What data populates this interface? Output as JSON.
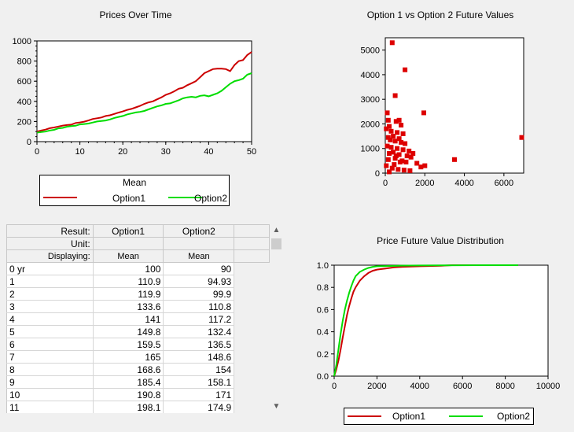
{
  "chart1": {
    "title": "Prices Over Time",
    "legend_title": "Mean",
    "series_labels": [
      "Option1",
      "Option2"
    ]
  },
  "chart2": {
    "title": "Option 1 vs Option 2 Future Values"
  },
  "chart3": {
    "title": "Price Future Value Distribution",
    "series_labels": [
      "Option1",
      "Option2"
    ]
  },
  "table": {
    "header_rows": [
      {
        "label": "Result:",
        "cells": [
          "Option1",
          "Option2"
        ]
      },
      {
        "label": "Unit:",
        "cells": [
          "",
          ""
        ]
      },
      {
        "label": "Displaying:",
        "cells": [
          "Mean",
          "Mean"
        ]
      }
    ],
    "rows": [
      {
        "label": "0 yr",
        "v1": "100",
        "v2": "90"
      },
      {
        "label": "1",
        "v1": "110.9",
        "v2": "94.93"
      },
      {
        "label": "2",
        "v1": "119.9",
        "v2": "99.9"
      },
      {
        "label": "3",
        "v1": "133.6",
        "v2": "110.8"
      },
      {
        "label": "4",
        "v1": "141",
        "v2": "117.2"
      },
      {
        "label": "5",
        "v1": "149.8",
        "v2": "132.4"
      },
      {
        "label": "6",
        "v1": "159.5",
        "v2": "136.5"
      },
      {
        "label": "7",
        "v1": "165",
        "v2": "148.6"
      },
      {
        "label": "8",
        "v1": "168.6",
        "v2": "154"
      },
      {
        "label": "9",
        "v1": "185.4",
        "v2": "158.1"
      },
      {
        "label": "10",
        "v1": "190.8",
        "v2": "171"
      },
      {
        "label": "11",
        "v1": "198.1",
        "v2": "174.9"
      }
    ]
  },
  "colors": {
    "option1": "#cc0000",
    "option2": "#00dd00",
    "scatter": "#dd0000"
  },
  "icons": {
    "scroll_up": "chevron-up-icon",
    "scroll_down": "chevron-down-icon"
  },
  "chart_data": [
    {
      "type": "line",
      "title": "Prices Over Time",
      "xlim": [
        0,
        50
      ],
      "ylim": [
        0,
        1000
      ],
      "x_ticks": [
        0,
        10,
        20,
        30,
        40,
        50
      ],
      "y_ticks": [
        0,
        200,
        400,
        600,
        800,
        1000
      ],
      "legend_title": "Mean",
      "legend": "bottom",
      "x": [
        0,
        1,
        2,
        3,
        4,
        5,
        6,
        7,
        8,
        9,
        10,
        11,
        12,
        13,
        14,
        15,
        16,
        17,
        18,
        19,
        20,
        21,
        22,
        23,
        24,
        25,
        26,
        27,
        28,
        29,
        30,
        31,
        32,
        33,
        34,
        35,
        36,
        37,
        38,
        39,
        40,
        41,
        42,
        43,
        44,
        45,
        46,
        47,
        48,
        49,
        50
      ],
      "series": [
        {
          "name": "Option1",
          "values": [
            100,
            110.9,
            119.9,
            133.6,
            141,
            149.8,
            159.5,
            165,
            168.6,
            185.4,
            190.8,
            198.1,
            210,
            225,
            232,
            240,
            255,
            262,
            275,
            288,
            300,
            315,
            325,
            340,
            355,
            375,
            390,
            400,
            420,
            440,
            465,
            480,
            500,
            525,
            535,
            560,
            580,
            600,
            640,
            680,
            700,
            720,
            725,
            725,
            720,
            700,
            760,
            800,
            810,
            860,
            890
          ]
        },
        {
          "name": "Option2",
          "values": [
            90,
            94.93,
            99.9,
            110.8,
            117.2,
            132.4,
            136.5,
            148.6,
            154,
            158.1,
            171,
            174.9,
            180,
            190,
            200,
            205,
            210,
            220,
            235,
            245,
            255,
            270,
            280,
            290,
            295,
            305,
            320,
            335,
            350,
            360,
            375,
            380,
            395,
            410,
            430,
            440,
            445,
            440,
            455,
            460,
            450,
            465,
            480,
            505,
            540,
            575,
            600,
            610,
            625,
            665,
            680
          ]
        }
      ]
    },
    {
      "type": "scatter",
      "title": "Option 1 vs Option 2 Future Values",
      "xlim": [
        0,
        7000
      ],
      "ylim": [
        0,
        5500
      ],
      "x_ticks": [
        0,
        2000,
        4000,
        6000
      ],
      "y_ticks": [
        0,
        1000,
        2000,
        3000,
        4000,
        5000
      ],
      "points": [
        [
          350,
          5300
        ],
        [
          1000,
          4200
        ],
        [
          500,
          3150
        ],
        [
          1950,
          2450
        ],
        [
          6900,
          1450
        ],
        [
          3500,
          550
        ],
        [
          100,
          2450
        ],
        [
          800,
          1950
        ],
        [
          550,
          2100
        ],
        [
          700,
          2150
        ],
        [
          150,
          2150
        ],
        [
          200,
          1900
        ],
        [
          50,
          1800
        ],
        [
          300,
          1700
        ],
        [
          600,
          1650
        ],
        [
          900,
          1600
        ],
        [
          400,
          1500
        ],
        [
          150,
          1450
        ],
        [
          700,
          1400
        ],
        [
          250,
          1350
        ],
        [
          500,
          1300
        ],
        [
          800,
          1250
        ],
        [
          1000,
          1200
        ],
        [
          100,
          1100
        ],
        [
          300,
          1050
        ],
        [
          600,
          1000
        ],
        [
          900,
          950
        ],
        [
          1200,
          900
        ],
        [
          400,
          850
        ],
        [
          200,
          800
        ],
        [
          700,
          750
        ],
        [
          1100,
          700
        ],
        [
          1300,
          650
        ],
        [
          500,
          600
        ],
        [
          150,
          550
        ],
        [
          850,
          500
        ],
        [
          1050,
          450
        ],
        [
          1600,
          400
        ],
        [
          2000,
          300
        ],
        [
          1800,
          250
        ],
        [
          350,
          200
        ],
        [
          650,
          150
        ],
        [
          950,
          120
        ],
        [
          1250,
          100
        ],
        [
          200,
          50
        ],
        [
          50,
          300
        ],
        [
          450,
          350
        ],
        [
          750,
          450
        ],
        [
          1400,
          800
        ],
        [
          550,
          700
        ]
      ]
    },
    {
      "type": "line",
      "title": "Price Future Value Distribution",
      "xlim": [
        0,
        10000
      ],
      "ylim": [
        0,
        1.0
      ],
      "x_ticks": [
        0,
        2000,
        4000,
        6000,
        8000,
        10000
      ],
      "y_ticks": [
        0.0,
        0.2,
        0.4,
        0.6,
        0.8,
        1.0
      ],
      "legend": "bottom",
      "series": [
        {
          "name": "Option1",
          "x": [
            0,
            100,
            200,
            300,
            400,
            500,
            600,
            700,
            800,
            900,
            1000,
            1200,
            1400,
            1600,
            1800,
            2000,
            2400,
            2800,
            3200,
            4000,
            5000,
            5500,
            6000,
            7000
          ],
          "values": [
            0,
            0.06,
            0.14,
            0.24,
            0.35,
            0.45,
            0.55,
            0.63,
            0.7,
            0.76,
            0.8,
            0.86,
            0.9,
            0.93,
            0.95,
            0.96,
            0.97,
            0.98,
            0.985,
            0.99,
            0.995,
            1.0,
            1.0,
            1.0
          ]
        },
        {
          "name": "Option2",
          "x": [
            0,
            100,
            200,
            300,
            400,
            500,
            600,
            700,
            800,
            900,
            1000,
            1200,
            1400,
            1600,
            1800,
            2000,
            2400,
            3000,
            4000,
            5000,
            6000,
            7000,
            8000,
            8600
          ],
          "values": [
            0,
            0.1,
            0.24,
            0.38,
            0.5,
            0.6,
            0.68,
            0.75,
            0.81,
            0.86,
            0.9,
            0.94,
            0.96,
            0.975,
            0.985,
            0.99,
            0.992,
            0.995,
            0.997,
            0.998,
            0.999,
            1.0,
            1.0,
            1.0
          ]
        }
      ]
    }
  ]
}
